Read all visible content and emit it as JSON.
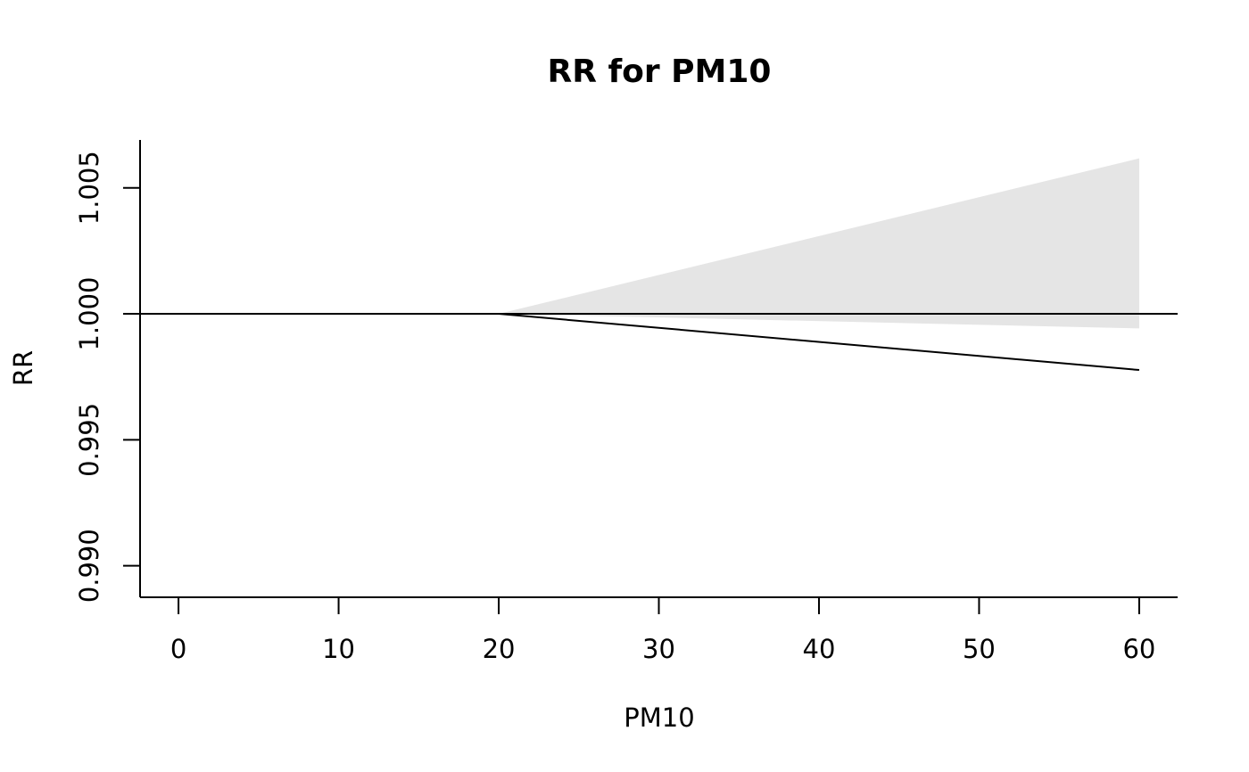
{
  "chart_data": {
    "type": "area",
    "title": "RR for PM10",
    "xlabel": "PM10",
    "ylabel": "RR",
    "xlim": [
      -2.4,
      62.4
    ],
    "ylim": [
      0.98875,
      1.0069
    ],
    "x_ticks": [
      0,
      10,
      20,
      30,
      40,
      50,
      60
    ],
    "x_tick_labels": [
      "0",
      "10",
      "20",
      "30",
      "40",
      "50",
      "60"
    ],
    "y_ticks": [
      0.99,
      0.995,
      1.0,
      1.005
    ],
    "y_tick_labels": [
      "0.990",
      "0.995",
      "1.000",
      "1.005"
    ],
    "reference_line": 1.0,
    "grid": false,
    "legend": "none",
    "band_color": "#e5e5e5",
    "line_color": "#000000",
    "series": [
      {
        "x": [
          0,
          20,
          60
        ],
        "rr": [
          1.0,
          1.0,
          0.99777
        ],
        "lower": [
          1.0,
          1.0,
          0.99942
        ],
        "upper": [
          1.0,
          1.0,
          1.00617
        ]
      }
    ]
  }
}
